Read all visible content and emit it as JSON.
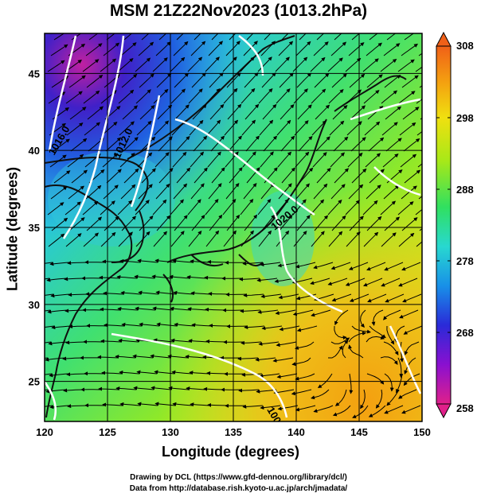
{
  "title": "MSM 21Z22Nov2023 (1013.2hPa)",
  "xlabel": "Longitude (degrees)",
  "ylabel": "Latitude  (degrees)",
  "credits": {
    "line1": "Drawing by DCL (https://www.gfd-dennou.org/library/dcl/)",
    "line2": "Data from http://database.rish.kyoto-u.ac.jp/arch/jmadata/"
  },
  "map": {
    "lon_range": [
      120,
      150
    ],
    "lat_range": [
      22.4,
      47.6
    ],
    "lon_ticks": [
      120,
      125,
      130,
      135,
      140,
      145,
      150
    ],
    "lat_ticks": [
      25,
      30,
      35,
      40,
      45
    ],
    "contour_labels": [
      "1016.0",
      "1012.0",
      "1020.0",
      "1008.0"
    ],
    "land_color": "#101010",
    "contour_color": "#ffffff"
  },
  "colorbar": {
    "min": 258,
    "max": 308,
    "ticks": [
      258,
      268,
      278,
      288,
      298,
      308
    ],
    "colors": [
      "#e0208a",
      "#8a10d0",
      "#2a2ad8",
      "#1890e8",
      "#28d8d0",
      "#30e060",
      "#a8e818",
      "#f0e010",
      "#f4a010",
      "#f06018"
    ]
  }
}
